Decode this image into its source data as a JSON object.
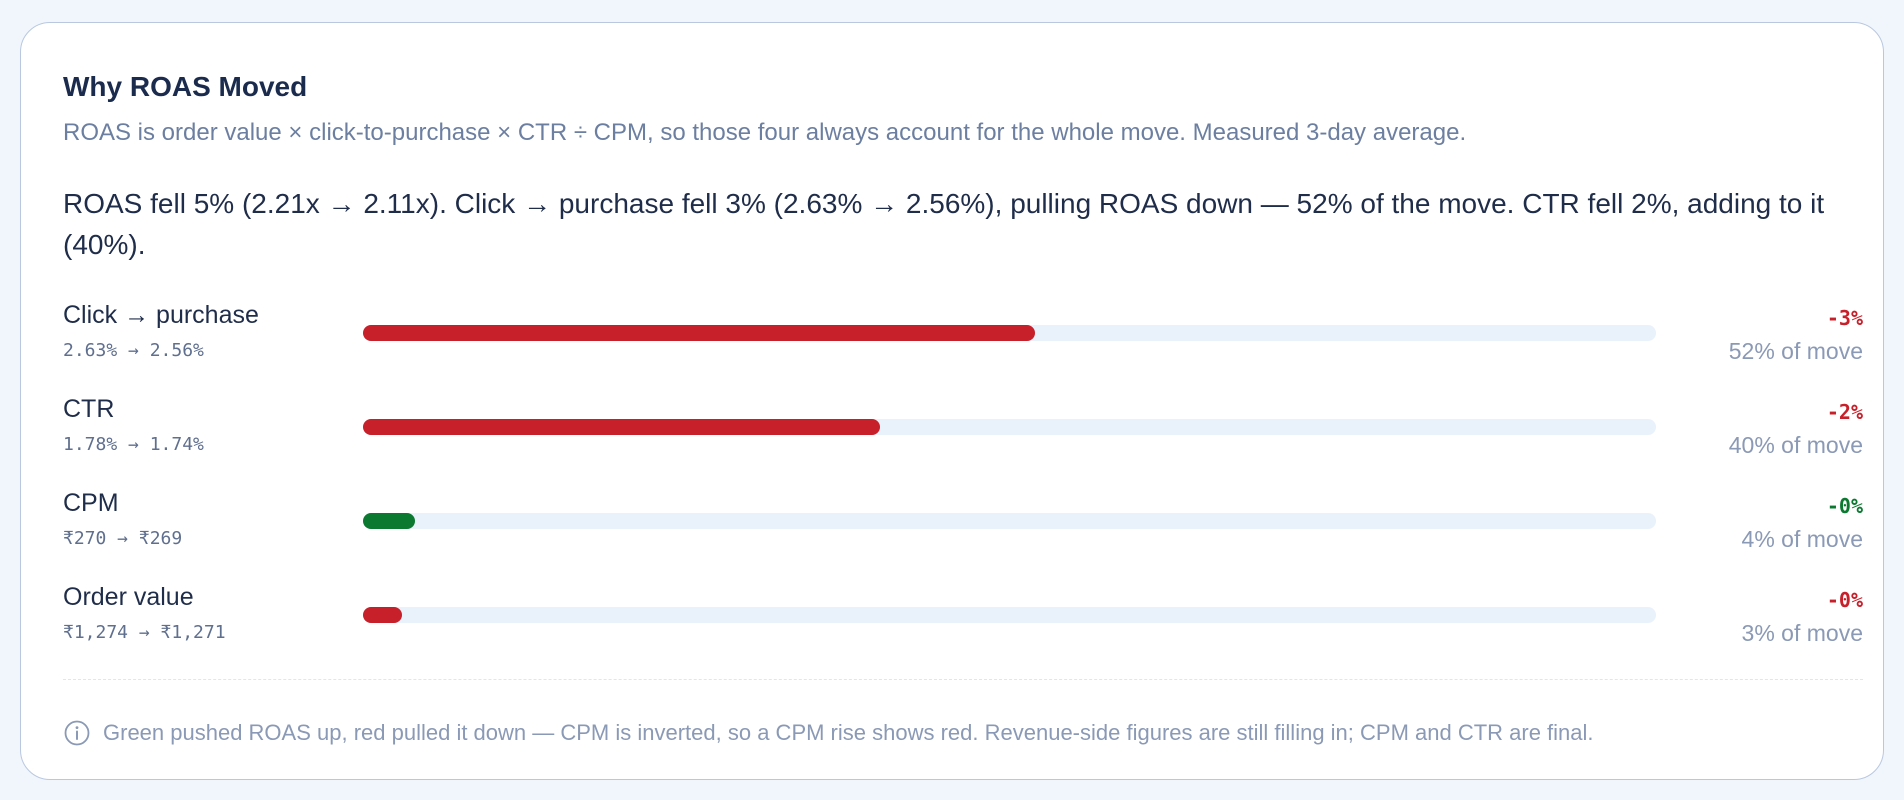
{
  "colors": {
    "negative": "#c7202a",
    "positive": "#0b7a30",
    "track": "#e9f1fb"
  },
  "card": {
    "title": "Why ROAS Moved",
    "subtitle": "ROAS is order value × click-to-purchase × CTR ÷ CPM, so those four always account for the whole move. Measured 3-day average.",
    "summary": "ROAS fell 5% (2.21x → 2.11x). Click → purchase fell 3% (2.63% → 2.56%), pulling ROAS down — 52% of the move. CTR fell 2%, adding to it (40%).",
    "footer": "Green pushed ROAS up, red pulled it down — CPM is inverted, so a CPM rise shows red. Revenue-side figures are still filling in; CPM and CTR are final.",
    "footer_icon": "info-icon"
  },
  "drivers": [
    {
      "label": "Click → purchase",
      "change": "2.63% → 2.56%",
      "delta": "-3%",
      "share": "52% of move",
      "share_value": 0.52,
      "direction": "negative"
    },
    {
      "label": "CTR",
      "change": "1.78% → 1.74%",
      "delta": "-2%",
      "share": "40% of move",
      "share_value": 0.4,
      "direction": "negative"
    },
    {
      "label": "CPM",
      "change": "₹270 → ₹269",
      "delta": "-0%",
      "share": "4% of move",
      "share_value": 0.04,
      "direction": "positive"
    },
    {
      "label": "Order value",
      "change": "₹1,274 → ₹1,271",
      "delta": "-0%",
      "share": "3% of move",
      "share_value": 0.03,
      "direction": "negative"
    }
  ]
}
